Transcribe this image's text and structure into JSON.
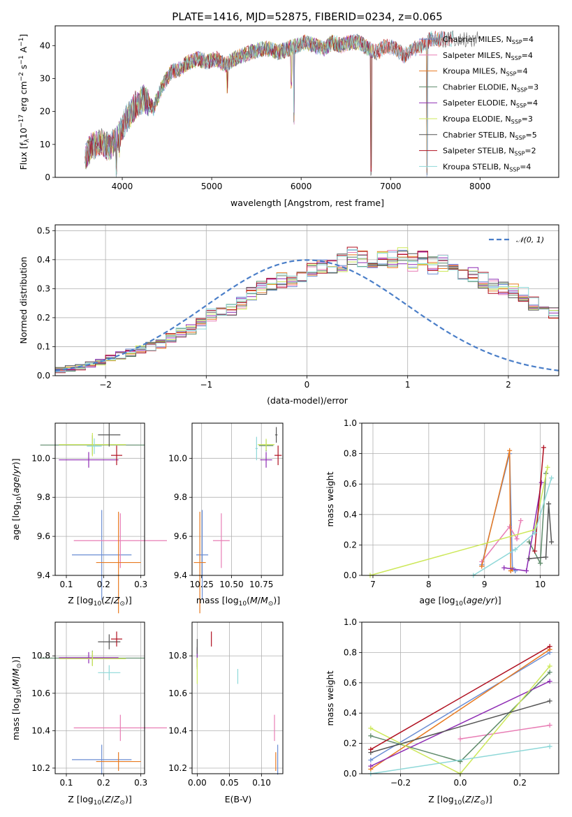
{
  "figure": {
    "title": "PLATE=1416, MJD=52875, FIBERID=0234, z=0.065"
  },
  "chart_data": [
    {
      "id": "spectrum",
      "type": "line",
      "xlabel": "wavelength [Angstrom, rest frame]",
      "ylabel": "Flux [f_λ10^-17 erg cm^-2 s^-1 A^-1]",
      "xlim": [
        3250,
        8880
      ],
      "ylim": [
        0,
        46
      ],
      "xticks": [
        "4000",
        "5000",
        "6000",
        "7000",
        "8000"
      ],
      "yticks": [
        "0",
        "10",
        "20",
        "30",
        "40"
      ],
      "grid": false,
      "legend_position": "top-right",
      "continuum": {
        "x": [
          3580,
          3650,
          3750,
          3850,
          3950,
          4050,
          4150,
          4250,
          4350,
          4450,
          4550,
          4650,
          4750,
          4850,
          4950,
          5050,
          5150,
          5250,
          5350,
          5450,
          5550,
          5650,
          5750,
          5850,
          5950,
          6050,
          6150,
          6250,
          6350,
          6450,
          6550,
          6650,
          6750,
          6850,
          6950,
          7050,
          7150,
          7250,
          7350,
          7450,
          7550
        ],
        "y": [
          6,
          9,
          11,
          9,
          12,
          18,
          22,
          24,
          21,
          28,
          32,
          33,
          35,
          36,
          35,
          36,
          34,
          36,
          37,
          38,
          39,
          39,
          38,
          39,
          40,
          41,
          40,
          39,
          41,
          40,
          41,
          41,
          39,
          38,
          40,
          39,
          37,
          39,
          40,
          42,
          42
        ]
      },
      "absorption_lines": [
        {
          "x": 3934,
          "y": 0
        },
        {
          "x": 3969,
          "y": 5
        },
        {
          "x": 5175,
          "y": 24
        },
        {
          "x": 5890,
          "y": 26
        },
        {
          "x": 5920,
          "y": 16
        },
        {
          "x": 6782,
          "y": 0
        },
        {
          "x": 7408,
          "y": 0
        }
      ],
      "series": [
        {
          "name": "Chabrier MILES, N_SSP=4",
          "color": "#6b8ed4",
          "xmax": 7600
        },
        {
          "name": "Salpeter MILES, N_SSP=4",
          "color": "#e87eb5",
          "xmax": 7600
        },
        {
          "name": "Kroupa MILES, N_SSP=4",
          "color": "#e87a20",
          "xmax": 7600
        },
        {
          "name": "Chabrier ELODIE, N_SSP=3",
          "color": "#5e8a6a",
          "xmax": 6800
        },
        {
          "name": "Salpeter ELODIE, N_SSP=4",
          "color": "#8e2cb4",
          "xmax": 6800
        },
        {
          "name": "Kroupa ELODIE, N_SSP=3",
          "color": "#cde85a",
          "xmax": 6800
        },
        {
          "name": "Chabrier STELIB, N_SSP=5",
          "color": "#555555",
          "xmax": 8000
        },
        {
          "name": "Salpeter STELIB, N_SSP=2",
          "color": "#b01020",
          "xmax": 7700
        },
        {
          "name": "Kroupa STELIB, N_SSP=4",
          "color": "#8ed8d8",
          "xmax": 7700
        }
      ]
    },
    {
      "id": "residuals",
      "type": "line",
      "subtype": "step-histogram",
      "xlabel": "(data-model)/error",
      "ylabel": "Normed distribution",
      "xlim": [
        -2.5,
        2.5
      ],
      "ylim": [
        0,
        0.52
      ],
      "xticks": [
        "−2",
        "−1",
        "0",
        "1",
        "2"
      ],
      "yticks": [
        "0.0",
        "0.1",
        "0.2",
        "0.3",
        "0.4",
        "0.5"
      ],
      "grid": true,
      "legend_position": "top-right",
      "legend_label": "N(0,1)",
      "bin_width": 0.1,
      "bin_start": -2.5,
      "base_histogram": [
        0.02,
        0.025,
        0.03,
        0.04,
        0.045,
        0.06,
        0.07,
        0.08,
        0.09,
        0.1,
        0.11,
        0.13,
        0.15,
        0.16,
        0.18,
        0.21,
        0.22,
        0.23,
        0.25,
        0.28,
        0.3,
        0.31,
        0.33,
        0.33,
        0.35,
        0.36,
        0.37,
        0.38,
        0.39,
        0.41,
        0.4,
        0.4,
        0.41,
        0.4,
        0.41,
        0.39,
        0.4,
        0.38,
        0.39,
        0.36,
        0.36,
        0.35,
        0.33,
        0.31,
        0.3,
        0.29,
        0.28,
        0.25,
        0.24,
        0.22,
        0.21,
        0.19,
        0.17,
        0.15,
        0.13,
        0.12,
        0.11,
        0.09,
        0.08,
        0.07,
        0.06,
        0.05,
        0.05,
        0.04,
        0.035,
        0.03,
        0.03,
        0.025,
        0.02,
        0.02
      ],
      "normal_curve": {
        "mean": 0,
        "sigma": 1,
        "color": "#4a7ec8"
      }
    },
    {
      "id": "age-vs-Z",
      "type": "scatter",
      "subtype": "errorbar",
      "xlabel": "Z [log10(Z/Z⊙)]",
      "ylabel": "age [log10(age/yr)]",
      "xlim": [
        0.07,
        0.31
      ],
      "ylim": [
        9.4,
        10.18
      ],
      "xticks": [
        "0.1",
        "0.2",
        "0.3"
      ],
      "yticks": [
        "9.4",
        "9.6",
        "9.8",
        "10.0"
      ],
      "grid": true,
      "points": [
        {
          "series": "Chabrier MILES",
          "x": 0.195,
          "y": 9.505,
          "xerr": 0.08,
          "yerr": 0.23
        },
        {
          "series": "Salpeter MILES",
          "x": 0.245,
          "y": 9.578,
          "xerr": 0.125,
          "yerr": 0.14
        },
        {
          "series": "Kroupa MILES",
          "x": 0.24,
          "y": 9.466,
          "xerr": 0.06,
          "yerr": 0.26
        },
        {
          "series": "Chabrier ELODIE",
          "x": 0.17,
          "y": 10.068,
          "xerr": 0.14,
          "yerr": 0.05
        },
        {
          "series": "Salpeter ELODIE",
          "x": 0.16,
          "y": 9.992,
          "xerr": 0.08,
          "yerr": 0.04
        },
        {
          "series": "Kroupa ELODIE",
          "x": 0.17,
          "y": 10.07,
          "xerr": 0.09,
          "yerr": 0.06
        },
        {
          "series": "Chabrier STELIB",
          "x": 0.215,
          "y": 10.12,
          "xerr": 0.03,
          "yerr": 0.06
        },
        {
          "series": "Salpeter STELIB",
          "x": 0.235,
          "y": 10.015,
          "xerr": 0.015,
          "yerr": 0.05
        },
        {
          "series": "Kroupa STELIB",
          "x": 0.175,
          "y": 10.062,
          "xerr": 0.02,
          "yerr": 0.04
        }
      ]
    },
    {
      "id": "age-vs-mass",
      "type": "scatter",
      "subtype": "errorbar",
      "xlabel": "mass [log10(M/M⊙)]",
      "ylabel": "",
      "xlim": [
        10.17,
        10.93
      ],
      "ylim": [
        9.4,
        10.18
      ],
      "xticks": [
        "10.25",
        "10.50",
        "10.75"
      ],
      "yticks": [
        "9.4",
        "9.6",
        "9.8",
        "10.0"
      ],
      "grid": true,
      "points": [
        {
          "series": "Chabrier MILES",
          "x": 10.255,
          "y": 9.505,
          "xerr": 0.05,
          "yerr": 0.23
        },
        {
          "series": "Salpeter MILES",
          "x": 10.415,
          "y": 9.578,
          "xerr": 0.07,
          "yerr": 0.14
        },
        {
          "series": "Kroupa MILES",
          "x": 10.235,
          "y": 9.466,
          "xerr": 0.05,
          "yerr": 0.26
        },
        {
          "series": "Chabrier ELODIE",
          "x": 10.79,
          "y": 10.065,
          "xerr": 0.06,
          "yerr": 0.03
        },
        {
          "series": "Salpeter ELODIE",
          "x": 10.79,
          "y": 9.992,
          "xerr": 0.05,
          "yerr": 0.04
        },
        {
          "series": "Kroupa ELODIE",
          "x": 10.79,
          "y": 10.07,
          "xerr": 0.07,
          "yerr": 0.03
        },
        {
          "series": "Chabrier STELIB",
          "x": 10.875,
          "y": 10.12,
          "xerr": 0.01,
          "yerr": 0.04
        },
        {
          "series": "Salpeter STELIB",
          "x": 10.89,
          "y": 10.015,
          "xerr": 0.03,
          "yerr": 0.05
        },
        {
          "series": "Kroupa STELIB",
          "x": 10.71,
          "y": 10.05,
          "xerr": 0.01,
          "yerr": 0.06
        }
      ]
    },
    {
      "id": "massweight-vs-age",
      "type": "line",
      "xlabel": "age [log10(age/yr)]",
      "ylabel": "mass weight",
      "xlim": [
        6.8,
        10.33
      ],
      "ylim": [
        0,
        1
      ],
      "xticks": [
        "7",
        "8",
        "9",
        "10"
      ],
      "yticks": [
        "0.0",
        "0.2",
        "0.4",
        "0.6",
        "0.8",
        "1.0"
      ],
      "grid": true,
      "series": [
        {
          "name": "Chabrier MILES",
          "x": [
            8.95,
            9.45,
            9.5,
            9.55
          ],
          "y": [
            0.07,
            0.8,
            0.05,
            0.03
          ]
        },
        {
          "name": "Salpeter MILES",
          "x": [
            8.95,
            9.45,
            9.58,
            9.65
          ],
          "y": [
            0.09,
            0.32,
            0.24,
            0.36
          ]
        },
        {
          "name": "Kroupa MILES",
          "x": [
            8.95,
            9.45,
            9.47,
            9.5
          ],
          "y": [
            0.06,
            0.82,
            0.03,
            0.04
          ]
        },
        {
          "name": "Chabrier ELODIE",
          "x": [
            9.8,
            10.0,
            10.1
          ],
          "y": [
            0.22,
            0.08,
            0.67
          ]
        },
        {
          "name": "Salpeter ELODIE",
          "x": [
            9.35,
            9.75,
            10.02
          ],
          "y": [
            0.05,
            0.03,
            0.61
          ]
        },
        {
          "name": "Kroupa ELODIE",
          "x": [
            6.95,
            9.9,
            10.13
          ],
          "y": [
            0.0,
            0.3,
            0.71
          ]
        },
        {
          "name": "Chabrier STELIB",
          "x": [
            9.8,
            10.1,
            10.15,
            10.2
          ],
          "y": [
            0.11,
            0.12,
            0.47,
            0.22
          ]
        },
        {
          "name": "Salpeter STELIB",
          "x": [
            9.9,
            10.06
          ],
          "y": [
            0.16,
            0.84
          ]
        },
        {
          "name": "Kroupa STELIB",
          "x": [
            8.8,
            9.55,
            9.9,
            10.2
          ],
          "y": [
            0.0,
            0.17,
            0.28,
            0.64
          ]
        }
      ]
    },
    {
      "id": "mass-vs-Z",
      "type": "scatter",
      "subtype": "errorbar",
      "xlabel": "Z [log10(Z/Z⊙)]",
      "ylabel": "mass [log10(M/M⊙)]",
      "xlim": [
        0.07,
        0.31
      ],
      "ylim": [
        10.17,
        10.98
      ],
      "xticks": [
        "0.1",
        "0.2",
        "0.3"
      ],
      "yticks": [
        "10.2",
        "10.4",
        "10.6",
        "10.8"
      ],
      "grid": true,
      "points": [
        {
          "series": "Chabrier MILES",
          "x": 0.195,
          "y": 10.245,
          "xerr": 0.08,
          "yerr": 0.08
        },
        {
          "series": "Salpeter MILES",
          "x": 0.245,
          "y": 10.415,
          "xerr": 0.125,
          "yerr": 0.07
        },
        {
          "series": "Kroupa MILES",
          "x": 0.24,
          "y": 10.235,
          "xerr": 0.06,
          "yerr": 0.05
        },
        {
          "series": "Chabrier ELODIE",
          "x": 0.17,
          "y": 10.788,
          "xerr": 0.14,
          "yerr": 0.04
        },
        {
          "series": "Salpeter ELODIE",
          "x": 0.16,
          "y": 10.79,
          "xerr": 0.08,
          "yerr": 0.03
        },
        {
          "series": "Kroupa ELODIE",
          "x": 0.17,
          "y": 10.785,
          "xerr": 0.09,
          "yerr": 0.04
        },
        {
          "series": "Chabrier STELIB",
          "x": 0.215,
          "y": 10.875,
          "xerr": 0.03,
          "yerr": 0.04
        },
        {
          "series": "Salpeter STELIB",
          "x": 0.235,
          "y": 10.89,
          "xerr": 0.015,
          "yerr": 0.04
        },
        {
          "series": "Kroupa STELIB",
          "x": 0.215,
          "y": 10.71,
          "xerr": 0.03,
          "yerr": 0.04
        }
      ]
    },
    {
      "id": "mass-vs-EBV",
      "type": "scatter",
      "subtype": "errorbar",
      "xlabel": "E(B-V)",
      "ylabel": "",
      "xlim": [
        -0.008,
        0.133
      ],
      "ylim": [
        10.17,
        10.98
      ],
      "xticks": [
        "0.00",
        "0.05",
        "0.10"
      ],
      "yticks": [
        "10.2",
        "10.4",
        "10.6",
        "10.8"
      ],
      "grid": true,
      "points": [
        {
          "series": "Chabrier MILES",
          "x": 0.125,
          "y": 10.245,
          "yerr": 0.08
        },
        {
          "series": "Salpeter MILES",
          "x": 0.12,
          "y": 10.415,
          "yerr": 0.07
        },
        {
          "series": "Kroupa MILES",
          "x": 0.122,
          "y": 10.235,
          "yerr": 0.05
        },
        {
          "series": "Chabrier ELODIE",
          "x": 0.0,
          "y": 10.788,
          "yerr": 0.06
        },
        {
          "series": "Salpeter ELODIE",
          "x": 0.0,
          "y": 10.79,
          "yerr": 0.05
        },
        {
          "series": "Kroupa ELODIE",
          "x": 0.0,
          "y": 10.72,
          "yerr": 0.07
        },
        {
          "series": "Chabrier STELIB",
          "x": 0.0,
          "y": 10.85,
          "yerr": 0.04
        },
        {
          "series": "Salpeter STELIB",
          "x": 0.022,
          "y": 10.89,
          "yerr": 0.04
        },
        {
          "series": "Kroupa STELIB",
          "x": 0.063,
          "y": 10.69,
          "yerr": 0.04
        }
      ]
    },
    {
      "id": "massweight-vs-Z",
      "type": "line",
      "xlabel": "Z [log10(Z/Z⊙)]",
      "ylabel": "mass weight",
      "xlim": [
        -0.33,
        0.33
      ],
      "ylim": [
        0,
        1
      ],
      "xticks": [
        "−0.2",
        "0.0",
        "0.2"
      ],
      "yticks": [
        "0.0",
        "0.2",
        "0.4",
        "0.6",
        "0.8",
        "1.0"
      ],
      "grid": true,
      "series": [
        {
          "name": "Chabrier MILES",
          "x": [
            -0.3,
            0.3
          ],
          "y": [
            0.09,
            0.8
          ]
        },
        {
          "name": "Salpeter MILES",
          "x": [
            0.0,
            0.3
          ],
          "y": [
            0.23,
            0.32
          ]
        },
        {
          "name": "Kroupa MILES",
          "x": [
            -0.3,
            0.3
          ],
          "y": [
            0.03,
            0.82
          ]
        },
        {
          "name": "Chabrier ELODIE",
          "x": [
            -0.3,
            0.0,
            0.3
          ],
          "y": [
            0.25,
            0.08,
            0.67
          ]
        },
        {
          "name": "Salpeter ELODIE",
          "x": [
            -0.3,
            0.3
          ],
          "y": [
            0.05,
            0.61
          ]
        },
        {
          "name": "Kroupa ELODIE",
          "x": [
            -0.3,
            0.0,
            0.3
          ],
          "y": [
            0.3,
            0.0,
            0.71
          ]
        },
        {
          "name": "Chabrier STELIB",
          "x": [
            -0.3,
            0.3
          ],
          "y": [
            0.14,
            0.48
          ]
        },
        {
          "name": "Salpeter STELIB",
          "x": [
            -0.3,
            0.3
          ],
          "y": [
            0.16,
            0.84
          ]
        },
        {
          "name": "Kroupa STELIB",
          "x": [
            -0.3,
            0.3
          ],
          "y": [
            0.0,
            0.18
          ]
        }
      ]
    }
  ]
}
